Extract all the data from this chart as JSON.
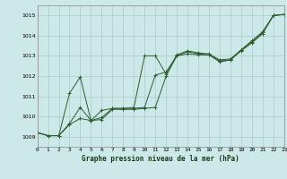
{
  "title": "Graphe pression niveau de la mer (hPa)",
  "x_labels": [
    "0",
    "1",
    "2",
    "3",
    "4",
    "5",
    "6",
    "7",
    "8",
    "9",
    "10",
    "11",
    "12",
    "13",
    "14",
    "15",
    "16",
    "17",
    "18",
    "19",
    "20",
    "21",
    "22",
    "23"
  ],
  "xlim": [
    0,
    23
  ],
  "ylim": [
    1008.5,
    1015.5
  ],
  "yticks": [
    1009,
    1010,
    1011,
    1012,
    1013,
    1014,
    1015
  ],
  "bg_color": "#cce8e8",
  "grid_color": "#aacccc",
  "line_color": "#2d5e2d",
  "line1": [
    1009.2,
    1009.05,
    1009.05,
    1011.15,
    1011.95,
    1009.8,
    1009.95,
    1010.4,
    1010.4,
    1010.45,
    1013.0,
    1013.0,
    1012.1,
    1013.05,
    1013.25,
    1013.15,
    1013.1,
    1012.8,
    1012.85,
    1013.3,
    1013.75,
    1014.2,
    1015.0,
    1015.05
  ],
  "line2": [
    1009.2,
    1009.05,
    1009.05,
    1009.65,
    1010.45,
    1009.8,
    1010.3,
    1010.4,
    1010.4,
    1010.4,
    1010.45,
    1012.05,
    1012.2,
    1013.0,
    1013.2,
    1013.1,
    1013.05,
    1012.75,
    1012.8,
    1013.3,
    1013.7,
    1014.15,
    1015.0,
    1015.05
  ],
  "line3": [
    1009.2,
    1009.05,
    1009.05,
    1009.6,
    1009.9,
    1009.8,
    1009.85,
    1010.35,
    1010.35,
    1010.35,
    1010.4,
    1010.45,
    1012.0,
    1013.0,
    1013.1,
    1013.05,
    1013.05,
    1012.7,
    1012.8,
    1013.25,
    1013.65,
    1014.1,
    1015.0,
    1015.05
  ]
}
